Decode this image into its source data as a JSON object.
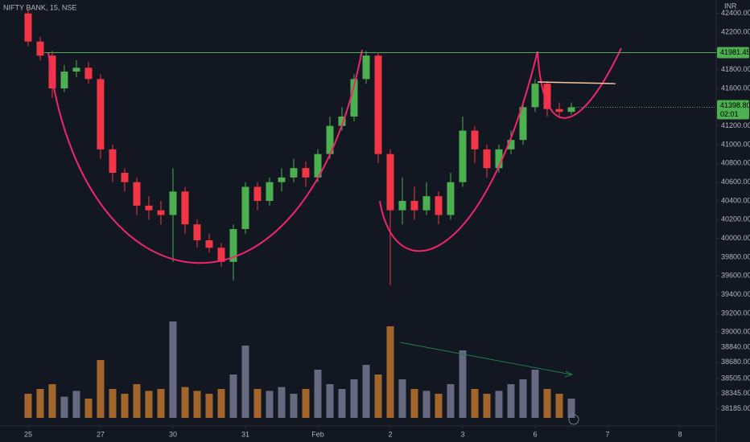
{
  "chart_data": {
    "type": "candlestick",
    "title": "NIFTY BANK, 15, NSE",
    "currency": "INR",
    "x": [
      0,
      1,
      2,
      3,
      4,
      5,
      6,
      7,
      8,
      9,
      10,
      11,
      12,
      13,
      14,
      15,
      16,
      17,
      18,
      19,
      20,
      21,
      22,
      23,
      24,
      25,
      26,
      27,
      28,
      29,
      30,
      31,
      32,
      33,
      34,
      35,
      36,
      37,
      38,
      39,
      40,
      41,
      42,
      43,
      44,
      45
    ],
    "open": [
      42400,
      42100,
      41950,
      41600,
      41780,
      41820,
      41700,
      40950,
      40700,
      40600,
      40350,
      40300,
      40250,
      40500,
      40150,
      39980,
      39900,
      39750,
      40100,
      40550,
      40400,
      40600,
      40650,
      40750,
      40650,
      40900,
      41200,
      41300,
      41700,
      41950,
      40900,
      40300,
      40400,
      40300,
      40450,
      40250,
      40600,
      41150,
      40950,
      40750,
      40950,
      41050,
      41400,
      41650,
      41380,
      41350
    ],
    "high": [
      42450,
      42150,
      42000,
      41850,
      41900,
      41880,
      41750,
      41000,
      40750,
      40650,
      40450,
      40400,
      40750,
      40550,
      40200,
      40050,
      39950,
      40150,
      40600,
      40600,
      40650,
      40750,
      40850,
      40820,
      40950,
      41300,
      41400,
      41750,
      42000,
      41980,
      40950,
      40650,
      40550,
      40600,
      40500,
      40700,
      41300,
      41200,
      41000,
      41000,
      41150,
      41450,
      41700,
      41680,
      41450,
      41450
    ],
    "low": [
      42050,
      41900,
      41500,
      41560,
      41720,
      41650,
      40850,
      40600,
      40500,
      40250,
      40200,
      40150,
      39750,
      40050,
      39900,
      39850,
      39700,
      39550,
      40050,
      40300,
      40350,
      40500,
      40600,
      40550,
      40600,
      40850,
      41150,
      41250,
      41650,
      40800,
      39500,
      40150,
      40200,
      40250,
      40150,
      40200,
      40550,
      40800,
      40650,
      40700,
      40900,
      41000,
      41350,
      41300,
      41280,
      41320
    ],
    "close": [
      42100,
      41950,
      41600,
      41780,
      41820,
      41700,
      40950,
      40700,
      40600,
      40350,
      40300,
      40250,
      40500,
      40150,
      39980,
      39900,
      39750,
      40100,
      40550,
      40400,
      40600,
      40650,
      40750,
      40650,
      40900,
      41200,
      41300,
      41700,
      41950,
      40900,
      40300,
      40400,
      40300,
      40450,
      40250,
      40600,
      41150,
      40950,
      40750,
      40950,
      41050,
      41400,
      41650,
      41380,
      41350,
      41398.8
    ],
    "volume": [
      25,
      30,
      35,
      22,
      28,
      20,
      60,
      30,
      25,
      35,
      28,
      30,
      100,
      32,
      28,
      25,
      30,
      45,
      75,
      30,
      28,
      32,
      25,
      30,
      50,
      35,
      30,
      40,
      55,
      45,
      95,
      40,
      30,
      28,
      25,
      35,
      70,
      30,
      25,
      28,
      35,
      40,
      50,
      30,
      25,
      20
    ],
    "up_color": "#4caf50",
    "down_color": "#f23645",
    "volume_up_color": "#7a7f99",
    "volume_down_color": "#c77a30",
    "xlim": [
      -2.33,
      57
    ],
    "xticks": [
      {
        "value": 0,
        "label": "25"
      },
      {
        "value": 6,
        "label": "27"
      },
      {
        "value": 12,
        "label": "30"
      },
      {
        "value": 18,
        "label": "31"
      },
      {
        "value": 24,
        "label": "Feb"
      },
      {
        "value": 30,
        "label": "2"
      },
      {
        "value": 36,
        "label": "3"
      },
      {
        "value": 42,
        "label": "6"
      },
      {
        "value": 48,
        "label": "7"
      },
      {
        "value": 54,
        "label": "8"
      }
    ],
    "ylim": [
      38000,
      42543
    ],
    "vlim": [
      0,
      100
    ],
    "yticks": [
      {
        "value": 42400,
        "label": "42400.00"
      },
      {
        "value": 42200,
        "label": "42200.00"
      },
      {
        "value": 41800,
        "label": "41800.00"
      },
      {
        "value": 41600,
        "label": "41600.00"
      },
      {
        "value": 41200,
        "label": "41200.00"
      },
      {
        "value": 41000,
        "label": "41000.00"
      },
      {
        "value": 40800,
        "label": "40800.00"
      },
      {
        "value": 40600,
        "label": "40600.00"
      },
      {
        "value": 40400,
        "label": "40400.00"
      },
      {
        "value": 40200,
        "label": "40200.00"
      },
      {
        "value": 40000,
        "label": "40000.00"
      },
      {
        "value": 39800,
        "label": "39800.00"
      },
      {
        "value": 39600,
        "label": "39600.00"
      },
      {
        "value": 39400,
        "label": "39400.00"
      },
      {
        "value": 39200,
        "label": "39200.00"
      },
      {
        "value": 39000,
        "label": "39000.00"
      },
      {
        "value": 38840,
        "label": "38840.00"
      },
      {
        "value": 38680,
        "label": "38680.00"
      },
      {
        "value": 38505,
        "label": "38505.00"
      },
      {
        "value": 38345,
        "label": "38345.00"
      },
      {
        "value": 38185,
        "label": "38185.00"
      }
    ],
    "levels": [
      {
        "value": 41981.45,
        "label": "41981.45",
        "color": "#4caf50"
      }
    ],
    "last": {
      "value": 41398.8,
      "label": "41398.80",
      "countdown": "02:01",
      "color": "#4caf50"
    }
  }
}
